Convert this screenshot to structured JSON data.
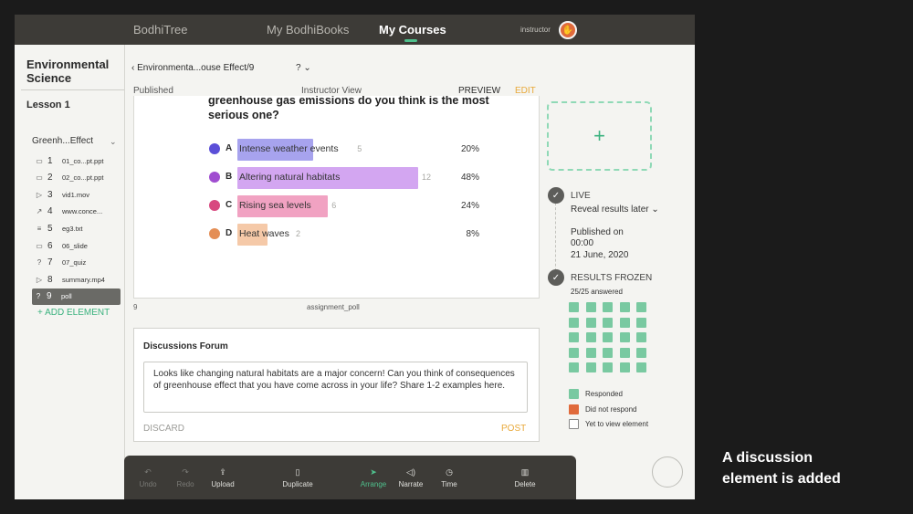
{
  "nav": {
    "brand": "BodhiTree",
    "my_books": "My BodhiBooks",
    "my_courses": "My Courses",
    "role": "instructor",
    "avatar_glyph": "✋"
  },
  "sidebar": {
    "course_title": "Environmental Science",
    "lesson": "Lesson 1",
    "section": "Greenh...Effect",
    "items": [
      {
        "icon": "slides-icon",
        "glyph": "▭",
        "num": "1",
        "label": "01_co...pt.ppt"
      },
      {
        "icon": "slides-icon",
        "glyph": "▭",
        "num": "2",
        "label": "02_co...pt.ppt"
      },
      {
        "icon": "video-icon",
        "glyph": "▷",
        "num": "3",
        "label": "vid1.mov"
      },
      {
        "icon": "link-icon",
        "glyph": "↗",
        "num": "4",
        "label": "www.conce..."
      },
      {
        "icon": "text-icon",
        "glyph": "≡",
        "num": "5",
        "label": "eg3.txt"
      },
      {
        "icon": "slides-icon",
        "glyph": "▭",
        "num": "6",
        "label": "06_slide"
      },
      {
        "icon": "quiz-icon",
        "glyph": "?",
        "num": "7",
        "label": "07_quiz"
      },
      {
        "icon": "video-icon",
        "glyph": "▷",
        "num": "8",
        "label": "summary.mp4"
      },
      {
        "icon": "poll-icon",
        "glyph": "?",
        "num": "9",
        "label": "poll"
      }
    ],
    "add_element": "+ ADD ELEMENT"
  },
  "header": {
    "breadcrumb": "Environmenta...ouse Effect/9",
    "help": "? ⌄",
    "published": "Published",
    "instructor_view": "Instructor View",
    "preview": "PREVIEW",
    "edit": "EDIT"
  },
  "poll": {
    "question": "greenhouse gas emissions do you think is the most serious one?",
    "number": "9",
    "name": "assignment_poll",
    "options": [
      {
        "letter": "A",
        "text": "Intense weather events",
        "count": "5",
        "percent": "20%",
        "share": 0.2,
        "dot_color": "#5b4fd8",
        "bar_color": "#a7a3ee"
      },
      {
        "letter": "B",
        "text": "Altering natural habitats",
        "count": "12",
        "percent": "48%",
        "share": 0.48,
        "dot_color": "#a04dd0",
        "bar_color": "#d3a6f1"
      },
      {
        "letter": "C",
        "text": "Rising sea levels",
        "count": "6",
        "percent": "24%",
        "share": 0.24,
        "dot_color": "#d8487f",
        "bar_color": "#f1a2c2"
      },
      {
        "letter": "D",
        "text": "Heat waves",
        "count": "2",
        "percent": "8%",
        "share": 0.08,
        "dot_color": "#e48e55",
        "bar_color": "#f5c9a8"
      }
    ]
  },
  "discussion": {
    "title": "Discussions Forum",
    "prompt": "Looks like changing natural habitats are a major concern! Can you think of consequences of greenhouse effect that you have come across in your life? Share 1-2 examples here.",
    "discard": "DISCARD",
    "post": "POST"
  },
  "toolbar": {
    "undo": "Undo",
    "redo": "Redo",
    "upload": "Upload",
    "duplicate": "Duplicate",
    "arrange": "Arrange",
    "narrate": "Narrate",
    "time": "Time",
    "delete": "Delete"
  },
  "status": {
    "add_glyph": "+",
    "live": "LIVE",
    "reveal": "Reveal results later ⌄",
    "published_on": "Published on",
    "time": "00:00",
    "date": "21 June, 2020",
    "frozen": "RESULTS FROZEN",
    "answered": "25/25 answered",
    "responded_count": 25,
    "legend": [
      {
        "label": "Responded",
        "color": "#79c9a1"
      },
      {
        "label": "Did not respond",
        "color": "#e06a3b"
      },
      {
        "label": "Yet to view element",
        "color": "#ffffff"
      }
    ]
  },
  "caption": {
    "line1": "A discussion",
    "line2": "element is added"
  }
}
